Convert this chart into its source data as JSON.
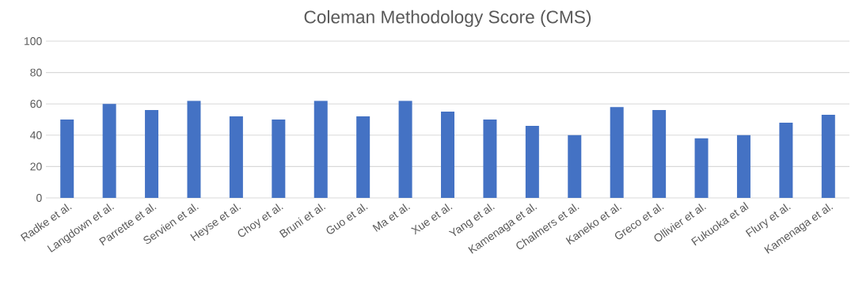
{
  "chart_data": {
    "type": "bar",
    "title": "Coleman Methodology Score (CMS)",
    "categories": [
      "Radke et al.",
      "Langdown et al.",
      "Parrette et al.",
      "Servien et al.",
      "Heyse et al.",
      "Choy et al.",
      "Bruni et al.",
      "Guo et al.",
      "Ma et al.",
      "Xue et al.",
      "Yang et al.",
      "Kamenaga et al.",
      "Chalmers et al.",
      "Kaneko et al.",
      "Greco et al.",
      "Ollivier et al.",
      "Fukuoka et al",
      "Flury et al.",
      "Kamenaga et al."
    ],
    "values": [
      50,
      60,
      56,
      62,
      52,
      50,
      62,
      52,
      62,
      55,
      50,
      46,
      40,
      58,
      56,
      38,
      40,
      48,
      53
    ],
    "color": "#4472c4",
    "ylim": [
      0,
      100
    ],
    "yticks": [
      0,
      20,
      40,
      60,
      80,
      100
    ],
    "grid": "y"
  }
}
